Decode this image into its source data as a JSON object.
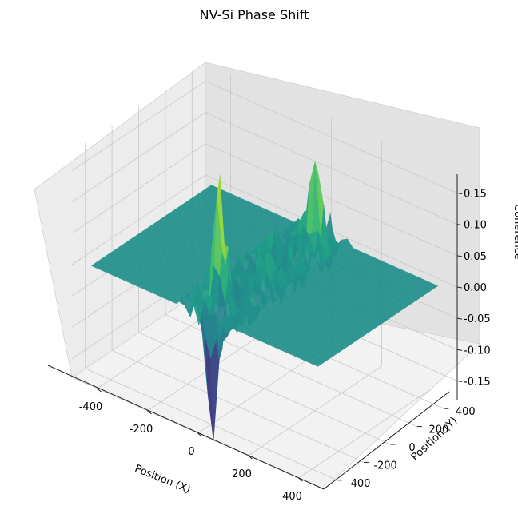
{
  "chart_data": {
    "type": "surface3d",
    "title": "NV-Si Phase Shift",
    "xlabel": "Position (X)",
    "ylabel": "Position (Y)",
    "zlabel": "Coherence",
    "xlim": [
      -500,
      500
    ],
    "ylim": [
      -500,
      500
    ],
    "zlim": [
      -0.18,
      0.18
    ],
    "x_ticks": [
      -400,
      -200,
      0,
      200,
      400
    ],
    "y_ticks": [
      -400,
      -200,
      0,
      200,
      400
    ],
    "z_ticks": [
      "-0.15",
      "-0.10",
      "-0.05",
      "0.00",
      "0.05",
      "0.10",
      "0.15"
    ],
    "colormap": "viridis",
    "grid": true,
    "surface_baseline": 0.0,
    "noisy_band_axis": "x",
    "noisy_band_x_range": [
      -110,
      110
    ],
    "peaks": [
      {
        "x": -20,
        "y": -300,
        "z": 0.16
      },
      {
        "x": 40,
        "y": 300,
        "z": 0.17
      },
      {
        "x": 0,
        "y": -380,
        "z": -0.17
      }
    ]
  }
}
